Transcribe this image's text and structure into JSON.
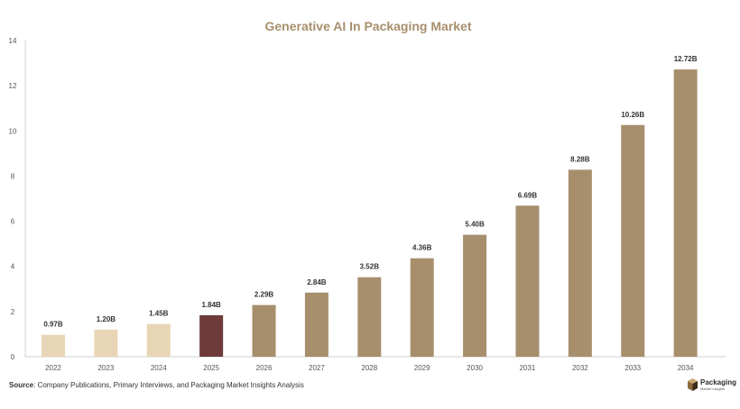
{
  "chart_data": {
    "type": "bar",
    "title": "Generative AI In Packaging Market",
    "categories": [
      "2022",
      "2023",
      "2024",
      "2025",
      "2026",
      "2027",
      "2028",
      "2029",
      "2030",
      "2031",
      "2032",
      "2033",
      "2034"
    ],
    "values": [
      0.97,
      1.2,
      1.45,
      1.84,
      2.29,
      2.84,
      3.52,
      4.36,
      5.4,
      6.69,
      8.28,
      10.26,
      12.72
    ],
    "data_labels": [
      "0.97B",
      "1.20B",
      "1.45B",
      "1.84B",
      "2.29B",
      "2.84B",
      "3.52B",
      "4.36B",
      "5.40B",
      "6.69B",
      "8.28B",
      "10.26B",
      "12.72B"
    ],
    "yticks": [
      0,
      2,
      4,
      6,
      8,
      10,
      12,
      14
    ],
    "ylim": [
      0,
      14
    ],
    "xlabel": "",
    "ylabel": "",
    "grid": false,
    "bar_colors": [
      "#e8d5b5",
      "#e8d5b5",
      "#e8d5b5",
      "#6e3a3a",
      "#a78f6d",
      "#a78f6d",
      "#a78f6d",
      "#a78f6d",
      "#a78f6d",
      "#a78f6d",
      "#a78f6d",
      "#a78f6d",
      "#a78f6d"
    ]
  },
  "colors": {
    "title": "#a78f6d",
    "axis": "#d0d0d0"
  },
  "source": {
    "label": "Source",
    "text": ": Company Publications, Primary Interviews, and Packaging Market Insights Analysis"
  },
  "logo": {
    "name": "Packaging",
    "tagline": "Market Insights",
    "icon": "cube-icon"
  }
}
